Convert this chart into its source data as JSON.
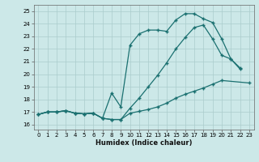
{
  "xlabel": "Humidex (Indice chaleur)",
  "bg_color": "#cce8e8",
  "grid_color": "#aacccc",
  "line_color": "#1a7070",
  "xlim": [
    -0.5,
    23.5
  ],
  "ylim": [
    15.6,
    25.5
  ],
  "yticks": [
    16,
    17,
    18,
    19,
    20,
    21,
    22,
    23,
    24,
    25
  ],
  "xticks": [
    0,
    1,
    2,
    3,
    4,
    5,
    6,
    7,
    8,
    9,
    10,
    11,
    12,
    13,
    14,
    15,
    16,
    17,
    18,
    19,
    20,
    21,
    22,
    23
  ],
  "curve1_x": [
    0,
    1,
    2,
    3,
    4,
    5,
    6,
    7,
    8,
    9,
    10,
    11,
    12,
    13,
    14,
    15,
    16,
    17,
    18,
    19,
    20,
    21,
    22
  ],
  "curve1_y": [
    16.8,
    17.0,
    17.0,
    17.1,
    16.9,
    16.85,
    16.9,
    16.5,
    18.5,
    17.4,
    22.3,
    23.2,
    23.5,
    23.5,
    23.4,
    24.3,
    24.8,
    24.8,
    24.4,
    24.1,
    22.8,
    21.2,
    20.5
  ],
  "curve2_x": [
    0,
    1,
    2,
    3,
    4,
    5,
    6,
    7,
    8,
    9,
    10,
    11,
    12,
    13,
    14,
    15,
    16,
    17,
    18,
    19,
    20,
    23
  ],
  "curve2_y": [
    16.8,
    17.0,
    17.0,
    17.1,
    16.9,
    16.85,
    16.9,
    16.5,
    16.4,
    16.4,
    16.9,
    17.05,
    17.2,
    17.4,
    17.7,
    18.1,
    18.4,
    18.65,
    18.9,
    19.2,
    19.5,
    19.3
  ],
  "curve3_x": [
    0,
    1,
    2,
    3,
    4,
    5,
    6,
    7,
    8,
    9,
    10,
    11,
    12,
    13,
    14,
    15,
    16,
    17,
    18,
    19,
    20,
    21,
    22,
    23
  ],
  "curve3_y": [
    16.8,
    17.0,
    17.0,
    17.1,
    16.9,
    16.85,
    16.9,
    16.5,
    16.4,
    16.4,
    17.3,
    18.1,
    19.0,
    19.9,
    20.9,
    22.0,
    22.9,
    23.7,
    23.9,
    22.8,
    21.5,
    21.2,
    20.4,
    null
  ]
}
